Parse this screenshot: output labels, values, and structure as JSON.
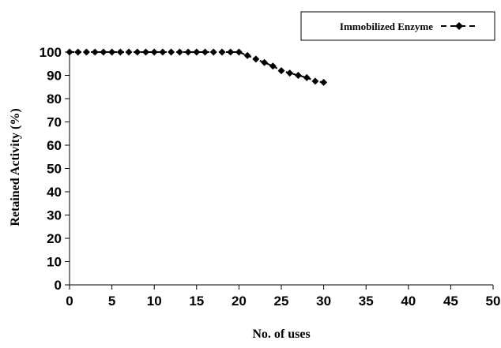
{
  "chart_data": {
    "type": "line",
    "title": "",
    "xlabel": "No. of uses",
    "ylabel": "Retained Activity (%)",
    "xlim": [
      0,
      50
    ],
    "ylim": [
      0,
      100
    ],
    "x_ticks": [
      0,
      5,
      10,
      15,
      20,
      25,
      30,
      35,
      40,
      45,
      50
    ],
    "y_ticks": [
      0,
      10,
      20,
      30,
      40,
      50,
      60,
      70,
      80,
      90,
      100
    ],
    "grid": false,
    "legend_position": "top-right",
    "series": [
      {
        "name": "Immobilized Enzyme",
        "color": "#000000",
        "marker": "diamond",
        "line_style": "dashed",
        "x": [
          0,
          1,
          2,
          3,
          4,
          5,
          6,
          7,
          8,
          9,
          10,
          11,
          12,
          13,
          14,
          15,
          16,
          17,
          18,
          19,
          20,
          21,
          22,
          23,
          24,
          25,
          26,
          27,
          28,
          29,
          30
        ],
        "y": [
          100,
          100,
          100,
          100,
          100,
          100,
          100,
          100,
          100,
          100,
          100,
          100,
          100,
          100,
          100,
          100,
          100,
          100,
          100,
          100,
          100,
          98.5,
          97,
          95.5,
          94,
          92,
          91,
          90,
          89,
          87.5,
          87
        ]
      }
    ]
  }
}
